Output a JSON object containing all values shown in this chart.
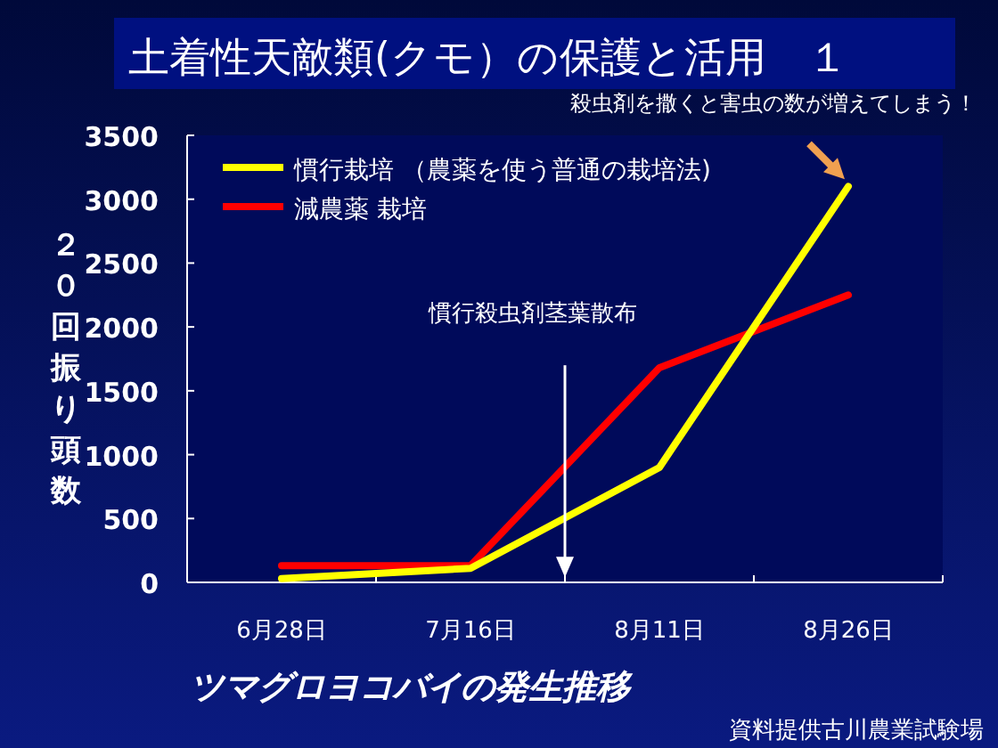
{
  "chart_data": {
    "type": "line",
    "title": "土着性天敵類(クモ）の保護と活用　１",
    "xlabel": "ツマグロヨコバイの発生推移",
    "ylabel": "２０回振り頭数",
    "categories": [
      "6月28日",
      "7月16日",
      "8月11日",
      "8月26日"
    ],
    "series": [
      {
        "name": "慣行栽培 （農薬を使う普通の栽培法)",
        "color": "#ffff00",
        "values": [
          30,
          110,
          900,
          3100
        ]
      },
      {
        "name": "減農薬 栽培",
        "color": "#ff0000",
        "values": [
          130,
          130,
          1680,
          2250
        ]
      }
    ],
    "ylim": [
      0,
      3500
    ],
    "yticks": [
      0,
      500,
      1000,
      1500,
      2000,
      2500,
      3000,
      3500
    ],
    "legend": "top left",
    "grid": false,
    "marker": "none",
    "line_style": "solid",
    "annotations": [
      "慣行殺虫剤茎葉散布",
      "殺虫剤を撒くと害虫の数が増えてしまう！",
      "資料提供古川農業試験場"
    ]
  }
}
